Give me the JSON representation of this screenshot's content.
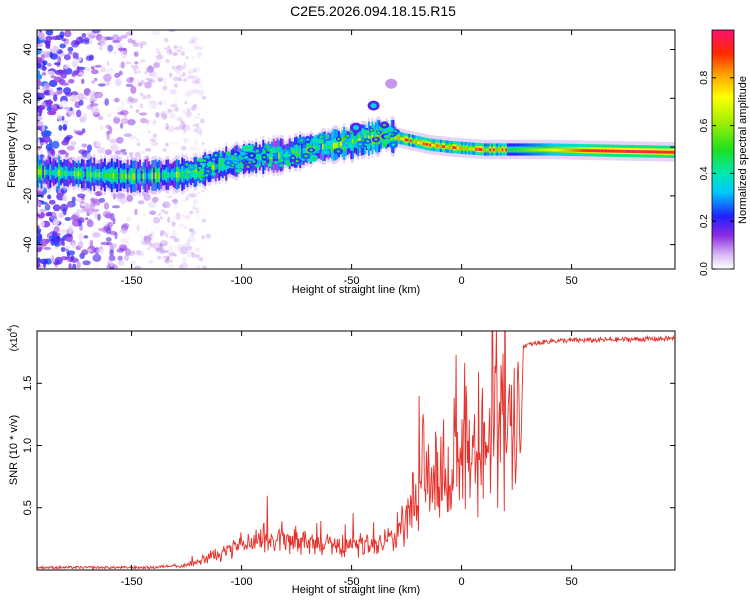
{
  "title": "C2E5.2026.094.18.15.R15",
  "chart_data": [
    {
      "type": "heatmap",
      "xlabel": "Height of straight line (km)",
      "ylabel": "Frequency (Hz)",
      "xlim": [
        -193,
        97
      ],
      "ylim": [
        -50,
        48
      ],
      "xticks": [
        -150,
        -100,
        -50,
        0,
        50
      ],
      "yticks": [
        -40,
        -20,
        0,
        20,
        40
      ],
      "colorbar": {
        "label": "Normalized spectral amplitude",
        "range": [
          0,
          1
        ],
        "ticks": [
          0.0,
          0.2,
          0.4,
          0.6,
          0.8
        ]
      },
      "ridge": [
        {
          "x": -193,
          "y": -10
        },
        {
          "x": -150,
          "y": -12
        },
        {
          "x": -125,
          "y": -11
        },
        {
          "x": -100,
          "y": -5
        },
        {
          "x": -80,
          "y": -3
        },
        {
          "x": -65,
          "y": 0
        },
        {
          "x": -50,
          "y": 2
        },
        {
          "x": -35,
          "y": 5
        },
        {
          "x": -25,
          "y": 3
        },
        {
          "x": -15,
          "y": 1
        },
        {
          "x": -5,
          "y": 0
        },
        {
          "x": 10,
          "y": -1
        },
        {
          "x": 40,
          "y": -1
        },
        {
          "x": 97,
          "y": -2
        }
      ],
      "branch": [
        {
          "x": -48,
          "y": 8
        },
        {
          "x": -40,
          "y": 17
        },
        {
          "x": -32,
          "y": 26
        }
      ]
    },
    {
      "type": "line",
      "xlabel": "Height of straight line (km)",
      "ylabel": "SNR (10 * v/v)",
      "scale_label": "(x10",
      "scale_exp": "4",
      "xlim": [
        -193,
        97
      ],
      "ylim": [
        0,
        1.92
      ],
      "xticks": [
        -150,
        -100,
        -50,
        0,
        50
      ],
      "yticks": [
        0.5,
        1.0,
        1.5
      ],
      "ytick_labels": [
        "0.5",
        "1.0",
        "1.5"
      ],
      "envelope": [
        {
          "x": -193,
          "y": 0.02
        },
        {
          "x": -140,
          "y": 0.02
        },
        {
          "x": -125,
          "y": 0.05
        },
        {
          "x": -110,
          "y": 0.18
        },
        {
          "x": -90,
          "y": 0.35
        },
        {
          "x": -70,
          "y": 0.3
        },
        {
          "x": -55,
          "y": 0.25
        },
        {
          "x": -40,
          "y": 0.28
        },
        {
          "x": -30,
          "y": 0.4
        },
        {
          "x": -22,
          "y": 0.8
        },
        {
          "x": -12,
          "y": 1.0
        },
        {
          "x": -2,
          "y": 1.15
        },
        {
          "x": 8,
          "y": 1.35
        },
        {
          "x": 18,
          "y": 1.55
        },
        {
          "x": 28,
          "y": 1.8
        },
        {
          "x": 40,
          "y": 1.84
        },
        {
          "x": 97,
          "y": 1.86
        }
      ],
      "color": "#e8302a"
    }
  ]
}
